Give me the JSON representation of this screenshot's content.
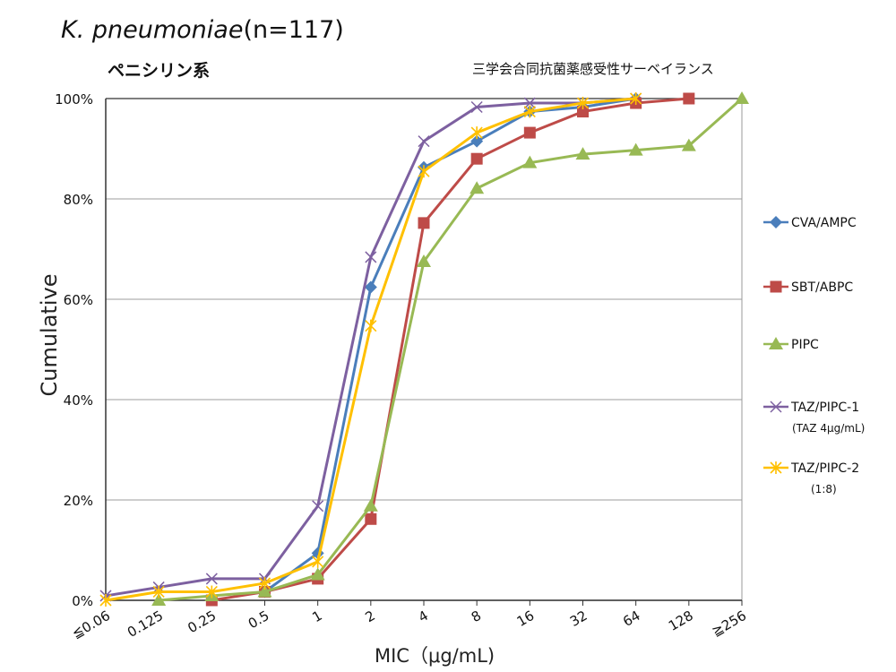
{
  "chart_data": {
    "type": "line",
    "title_italic": "K. pneumoniae",
    "title_rest": "(n=117)",
    "subtitle": "ペニシリン系",
    "source": "三学会合同抗菌薬感受性サーベイランス",
    "xlabel": "MIC（μg/mL)",
    "ylabel": "Cumulative",
    "categories": [
      "≦0.06",
      "0.125",
      "0.25",
      "0.5",
      "1",
      "2",
      "4",
      "8",
      "16",
      "32",
      "64",
      "128",
      "≧256"
    ],
    "ylim": [
      0,
      100
    ],
    "yticks": [
      "0%",
      "20%",
      "40%",
      "60%",
      "80%",
      "100%"
    ],
    "grid": true,
    "legend_position": "right",
    "series": [
      {
        "name": "CVA/AMPC",
        "color": "#4a7ebb",
        "marker": "diamond",
        "values": [
          null,
          null,
          null,
          1.7,
          9.4,
          62.4,
          86.3,
          91.5,
          97.4,
          98.3,
          100,
          null,
          null
        ]
      },
      {
        "name": "SBT/ABPC",
        "color": "#be4b48",
        "marker": "square",
        "values": [
          null,
          null,
          0,
          1.7,
          4.3,
          16.2,
          75.2,
          88.0,
          93.2,
          97.4,
          99.1,
          100,
          null
        ]
      },
      {
        "name": "PIPC",
        "color": "#98b954",
        "marker": "triangle",
        "values": [
          null,
          0,
          0.9,
          1.7,
          5.1,
          18.8,
          67.5,
          82.1,
          87.2,
          88.9,
          89.7,
          90.6,
          100
        ]
      },
      {
        "name": "TAZ/PIPC-1",
        "sub": "(TAZ 4μg/mL)",
        "color": "#7d60a0",
        "marker": "x",
        "values": [
          0.9,
          2.6,
          4.3,
          4.3,
          18.8,
          68.4,
          91.5,
          98.3,
          99.1,
          99.1,
          100,
          null,
          null
        ]
      },
      {
        "name": "TAZ/PIPC-2",
        "sub": "(1:8)",
        "color": "#ffc000",
        "marker": "star",
        "values": [
          0,
          1.7,
          1.7,
          3.4,
          7.7,
          54.7,
          85.5,
          93.2,
          97.4,
          99.1,
          100,
          null,
          null
        ]
      }
    ]
  }
}
